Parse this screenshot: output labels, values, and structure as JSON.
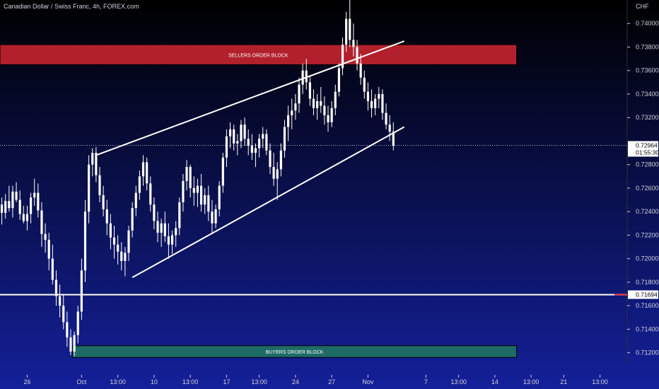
{
  "header": {
    "title": "Canadian Dollar / Swiss Franc, 4h, FOREX.com"
  },
  "colors": {
    "bg_top": "#000000",
    "bg_bottom": "#14209a",
    "candle": "#ffffff",
    "seller_zone": "#b2202c",
    "buyer_zone": "#1f6b66",
    "axis_text": "#d1d4dc",
    "badge_bg": "#ffffff",
    "level_mark": "#f23645"
  },
  "chart_data": {
    "type": "candlestick",
    "title": "Canadian Dollar / Swiss Franc, 4h, FOREX.com",
    "y_axis": {
      "currency_label": "CHF",
      "range": [
        0.7112,
        0.742
      ],
      "ticks": [
        0.74,
        0.738,
        0.736,
        0.734,
        0.732,
        0.728,
        0.726,
        0.724,
        0.722,
        0.72,
        0.718,
        0.716,
        0.714,
        0.712
      ],
      "tick_labels": [
        "0.74000",
        "0.73800",
        "0.73600",
        "0.73400",
        "0.73200",
        "0.72800",
        "0.72600",
        "0.72400",
        "0.72200",
        "0.72000",
        "0.71800",
        "0.71600",
        "0.71400",
        "0.71200"
      ],
      "grid": false
    },
    "x_axis": {
      "ticks": [
        {
          "label": "26",
          "bar": 7
        },
        {
          "label": "Oct",
          "bar": 22
        },
        {
          "label": "13:00",
          "bar": 32
        },
        {
          "label": "10",
          "bar": 42
        },
        {
          "label": "13:00",
          "bar": 52
        },
        {
          "label": "17",
          "bar": 62
        },
        {
          "label": "13:00",
          "bar": 71
        },
        {
          "label": "24",
          "bar": 81
        },
        {
          "label": "27",
          "bar": 91
        },
        {
          "label": "Nov",
          "bar": 101
        },
        {
          "label": "7",
          "bar": 117
        },
        {
          "label": "13:00",
          "bar": 126
        },
        {
          "label": "14",
          "bar": 136
        },
        {
          "label": "13:00",
          "bar": 146
        },
        {
          "label": "21",
          "bar": 155
        },
        {
          "label": "13:00",
          "bar": 165
        }
      ],
      "bar_count": 173
    },
    "candles": [
      [
        0.7246,
        0.7252,
        0.7229,
        0.7239
      ],
      [
        0.7239,
        0.7255,
        0.7234,
        0.7249
      ],
      [
        0.7249,
        0.7262,
        0.724,
        0.7243
      ],
      [
        0.7243,
        0.7262,
        0.7235,
        0.7257
      ],
      [
        0.7257,
        0.7265,
        0.7248,
        0.725
      ],
      [
        0.725,
        0.7258,
        0.7233,
        0.7238
      ],
      [
        0.7238,
        0.7245,
        0.723,
        0.7232
      ],
      [
        0.7232,
        0.7245,
        0.7224,
        0.7238
      ],
      [
        0.7238,
        0.7256,
        0.723,
        0.7252
      ],
      [
        0.7252,
        0.7268,
        0.7245,
        0.7256
      ],
      [
        0.7256,
        0.7264,
        0.7235,
        0.7241
      ],
      [
        0.7241,
        0.7248,
        0.721,
        0.7221
      ],
      [
        0.7221,
        0.723,
        0.7205,
        0.7216
      ],
      [
        0.7216,
        0.7222,
        0.719,
        0.72
      ],
      [
        0.72,
        0.7212,
        0.7178,
        0.7182
      ],
      [
        0.7182,
        0.719,
        0.716,
        0.7168
      ],
      [
        0.7168,
        0.7178,
        0.715,
        0.716
      ],
      [
        0.716,
        0.717,
        0.714,
        0.7146
      ],
      [
        0.7146,
        0.7155,
        0.7125,
        0.7133
      ],
      [
        0.7133,
        0.714,
        0.7118,
        0.7121
      ],
      [
        0.7121,
        0.7138,
        0.7117,
        0.7135
      ],
      [
        0.7135,
        0.716,
        0.7128,
        0.7155
      ],
      [
        0.7155,
        0.72,
        0.7148,
        0.719
      ],
      [
        0.719,
        0.725,
        0.718,
        0.724
      ],
      [
        0.724,
        0.7288,
        0.723,
        0.728
      ],
      [
        0.728,
        0.7294,
        0.727,
        0.729
      ],
      [
        0.729,
        0.7295,
        0.7265,
        0.7271
      ],
      [
        0.7271,
        0.7278,
        0.7248,
        0.7254
      ],
      [
        0.7254,
        0.7262,
        0.7236,
        0.7242
      ],
      [
        0.7242,
        0.725,
        0.722,
        0.723
      ],
      [
        0.723,
        0.7238,
        0.7208,
        0.7218
      ],
      [
        0.7218,
        0.7228,
        0.72,
        0.7212
      ],
      [
        0.7212,
        0.722,
        0.7195,
        0.7206
      ],
      [
        0.7206,
        0.7214,
        0.719,
        0.7198
      ],
      [
        0.7198,
        0.721,
        0.7185,
        0.7205
      ],
      [
        0.7205,
        0.7228,
        0.7198,
        0.7224
      ],
      [
        0.7224,
        0.7248,
        0.7218,
        0.7243
      ],
      [
        0.7243,
        0.7262,
        0.7236,
        0.7256
      ],
      [
        0.7256,
        0.7275,
        0.725,
        0.727
      ],
      [
        0.727,
        0.7288,
        0.7262,
        0.7282
      ],
      [
        0.7282,
        0.7286,
        0.7258,
        0.7264
      ],
      [
        0.7264,
        0.727,
        0.724,
        0.7246
      ],
      [
        0.7246,
        0.7252,
        0.7225,
        0.7232
      ],
      [
        0.7232,
        0.724,
        0.7214,
        0.7222
      ],
      [
        0.7222,
        0.7234,
        0.721,
        0.723
      ],
      [
        0.723,
        0.724,
        0.7214,
        0.7219
      ],
      [
        0.7219,
        0.723,
        0.72,
        0.7212
      ],
      [
        0.7212,
        0.7224,
        0.7204,
        0.722
      ],
      [
        0.722,
        0.7232,
        0.721,
        0.7226
      ],
      [
        0.7226,
        0.7252,
        0.722,
        0.7248
      ],
      [
        0.7248,
        0.7272,
        0.724,
        0.7266
      ],
      [
        0.7266,
        0.7284,
        0.7258,
        0.7278
      ],
      [
        0.7278,
        0.728,
        0.7252,
        0.726
      ],
      [
        0.726,
        0.727,
        0.7245,
        0.7256
      ],
      [
        0.7256,
        0.7268,
        0.7244,
        0.7262
      ],
      [
        0.7262,
        0.7272,
        0.724,
        0.7246
      ],
      [
        0.7246,
        0.726,
        0.7238,
        0.7254
      ],
      [
        0.7254,
        0.7262,
        0.7232,
        0.724
      ],
      [
        0.724,
        0.725,
        0.7222,
        0.723
      ],
      [
        0.723,
        0.7246,
        0.7226,
        0.7242
      ],
      [
        0.7242,
        0.7266,
        0.7236,
        0.7262
      ],
      [
        0.7262,
        0.729,
        0.7256,
        0.7286
      ],
      [
        0.7286,
        0.731,
        0.7278,
        0.7304
      ],
      [
        0.7304,
        0.7316,
        0.7294,
        0.731
      ],
      [
        0.731,
        0.7314,
        0.7292,
        0.7298
      ],
      [
        0.7298,
        0.7306,
        0.7288,
        0.73
      ],
      [
        0.73,
        0.7318,
        0.7294,
        0.7314
      ],
      [
        0.7314,
        0.732,
        0.7296,
        0.7302
      ],
      [
        0.7302,
        0.731,
        0.7288,
        0.7296
      ],
      [
        0.7296,
        0.7306,
        0.7284,
        0.729
      ],
      [
        0.729,
        0.7298,
        0.7278,
        0.7294
      ],
      [
        0.7294,
        0.7306,
        0.7286,
        0.7302
      ],
      [
        0.7302,
        0.7312,
        0.7294,
        0.7306
      ],
      [
        0.7306,
        0.731,
        0.7288,
        0.7292
      ],
      [
        0.7292,
        0.7298,
        0.7272,
        0.7278
      ],
      [
        0.7278,
        0.729,
        0.7262,
        0.7268
      ],
      [
        0.7268,
        0.7282,
        0.725,
        0.7276
      ],
      [
        0.7276,
        0.7298,
        0.727,
        0.7292
      ],
      [
        0.7292,
        0.7318,
        0.7286,
        0.7312
      ],
      [
        0.7312,
        0.733,
        0.73,
        0.7322
      ],
      [
        0.7322,
        0.7336,
        0.731,
        0.7326
      ],
      [
        0.7326,
        0.734,
        0.7318,
        0.7332
      ],
      [
        0.7332,
        0.7354,
        0.7324,
        0.7348
      ],
      [
        0.7348,
        0.7366,
        0.734,
        0.736
      ],
      [
        0.736,
        0.737,
        0.7344,
        0.735
      ],
      [
        0.735,
        0.7356,
        0.733,
        0.7336
      ],
      [
        0.7336,
        0.7344,
        0.7322,
        0.7328
      ],
      [
        0.7328,
        0.734,
        0.7318,
        0.7334
      ],
      [
        0.7334,
        0.7346,
        0.7324,
        0.733
      ],
      [
        0.733,
        0.7338,
        0.7314,
        0.7322
      ],
      [
        0.7322,
        0.733,
        0.7308,
        0.7316
      ],
      [
        0.7316,
        0.7334,
        0.7312,
        0.7328
      ],
      [
        0.7328,
        0.7348,
        0.7322,
        0.7342
      ],
      [
        0.7342,
        0.7366,
        0.7338,
        0.7362
      ],
      [
        0.7362,
        0.7388,
        0.7356,
        0.7382
      ],
      [
        0.7382,
        0.741,
        0.7376,
        0.7404
      ],
      [
        0.7404,
        0.743,
        0.738,
        0.7386
      ],
      [
        0.7386,
        0.74,
        0.7372,
        0.738
      ],
      [
        0.738,
        0.7386,
        0.736,
        0.7366
      ],
      [
        0.7366,
        0.7374,
        0.7348,
        0.7354
      ],
      [
        0.7354,
        0.736,
        0.7336,
        0.7342
      ],
      [
        0.7342,
        0.735,
        0.7326,
        0.7334
      ],
      [
        0.7334,
        0.7344,
        0.732,
        0.7328
      ],
      [
        0.7328,
        0.734,
        0.7322,
        0.7336
      ],
      [
        0.7336,
        0.7346,
        0.7328,
        0.734
      ],
      [
        0.734,
        0.7344,
        0.7318,
        0.7324
      ],
      [
        0.7324,
        0.7332,
        0.731,
        0.7314
      ],
      [
        0.7314,
        0.7322,
        0.73,
        0.7308
      ],
      [
        0.7308,
        0.7316,
        0.7292,
        0.7296
      ]
    ],
    "annotations": [
      {
        "type": "zone",
        "label": "SELLERS ORDER BLOCK",
        "from": 0.7365,
        "to": 0.7382,
        "color": "#b2202c",
        "x_from_bar": 0,
        "x_to_bar": 142
      },
      {
        "type": "zone",
        "label": "BUYERS ORDER BLOCK",
        "from": 0.7126,
        "to": 0.7116,
        "color": "#1f6b66",
        "x_from_bar": 20,
        "x_to_bar": 142
      },
      {
        "type": "trendline",
        "from": [
          26,
          0.7288
        ],
        "to": [
          111,
          0.7385
        ]
      },
      {
        "type": "trendline",
        "from": [
          36,
          0.7184
        ],
        "to": [
          111,
          0.7312
        ]
      },
      {
        "type": "hline",
        "value": 0.71694
      }
    ],
    "price_badges": [
      {
        "label": "0.72964",
        "sub": "01:55:30",
        "value": 0.72964
      },
      {
        "label": "0.71694",
        "value": 0.71694
      }
    ]
  }
}
